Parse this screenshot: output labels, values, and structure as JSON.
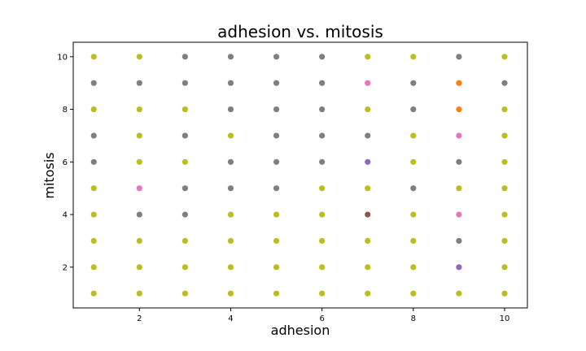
{
  "chart_data": {
    "type": "scatter",
    "title": "adhesion vs. mitosis",
    "xlabel": "adhesion",
    "ylabel": "mitosis",
    "xlim": [
      0.55,
      10.5
    ],
    "ylim": [
      0.45,
      10.55
    ],
    "xticks": [
      2,
      4,
      6,
      8,
      10
    ],
    "yticks": [
      2,
      4,
      6,
      8,
      10
    ],
    "grid": false,
    "colors": {
      "olive": "#bcbd22",
      "gray": "#7f7f7f",
      "pink": "#e377c2",
      "orange": "#ff7f0e",
      "purple": "#9467bd",
      "brown": "#8c564b"
    },
    "points": [
      {
        "x": 1,
        "y": 10,
        "color": "olive"
      },
      {
        "x": 1,
        "y": 9,
        "color": "gray"
      },
      {
        "x": 1,
        "y": 8,
        "color": "olive"
      },
      {
        "x": 1,
        "y": 7,
        "color": "gray"
      },
      {
        "x": 1,
        "y": 6,
        "color": "gray"
      },
      {
        "x": 1,
        "y": 5,
        "color": "olive"
      },
      {
        "x": 1,
        "y": 4,
        "color": "olive"
      },
      {
        "x": 1,
        "y": 3,
        "color": "olive"
      },
      {
        "x": 1,
        "y": 2,
        "color": "olive"
      },
      {
        "x": 1,
        "y": 1,
        "color": "olive"
      },
      {
        "x": 2,
        "y": 10,
        "color": "olive"
      },
      {
        "x": 2,
        "y": 9,
        "color": "gray"
      },
      {
        "x": 2,
        "y": 8,
        "color": "olive"
      },
      {
        "x": 2,
        "y": 7,
        "color": "olive"
      },
      {
        "x": 2,
        "y": 6,
        "color": "olive"
      },
      {
        "x": 2,
        "y": 5,
        "color": "pink"
      },
      {
        "x": 2,
        "y": 4,
        "color": "gray"
      },
      {
        "x": 2,
        "y": 3,
        "color": "olive"
      },
      {
        "x": 2,
        "y": 2,
        "color": "olive"
      },
      {
        "x": 2,
        "y": 1,
        "color": "olive"
      },
      {
        "x": 3,
        "y": 10,
        "color": "gray"
      },
      {
        "x": 3,
        "y": 9,
        "color": "gray"
      },
      {
        "x": 3,
        "y": 8,
        "color": "olive"
      },
      {
        "x": 3,
        "y": 7,
        "color": "gray"
      },
      {
        "x": 3,
        "y": 6,
        "color": "olive"
      },
      {
        "x": 3,
        "y": 5,
        "color": "gray"
      },
      {
        "x": 3,
        "y": 4,
        "color": "gray"
      },
      {
        "x": 3,
        "y": 3,
        "color": "olive"
      },
      {
        "x": 3,
        "y": 2,
        "color": "olive"
      },
      {
        "x": 3,
        "y": 1,
        "color": "olive"
      },
      {
        "x": 4,
        "y": 10,
        "color": "gray"
      },
      {
        "x": 4,
        "y": 9,
        "color": "gray"
      },
      {
        "x": 4,
        "y": 8,
        "color": "gray"
      },
      {
        "x": 4,
        "y": 7,
        "color": "olive"
      },
      {
        "x": 4,
        "y": 6,
        "color": "gray"
      },
      {
        "x": 4,
        "y": 5,
        "color": "gray"
      },
      {
        "x": 4,
        "y": 4,
        "color": "olive"
      },
      {
        "x": 4,
        "y": 3,
        "color": "olive"
      },
      {
        "x": 4,
        "y": 2,
        "color": "olive"
      },
      {
        "x": 4,
        "y": 1,
        "color": "olive"
      },
      {
        "x": 5,
        "y": 10,
        "color": "gray"
      },
      {
        "x": 5,
        "y": 9,
        "color": "gray"
      },
      {
        "x": 5,
        "y": 8,
        "color": "gray"
      },
      {
        "x": 5,
        "y": 7,
        "color": "gray"
      },
      {
        "x": 5,
        "y": 6,
        "color": "gray"
      },
      {
        "x": 5,
        "y": 5,
        "color": "gray"
      },
      {
        "x": 5,
        "y": 4,
        "color": "olive"
      },
      {
        "x": 5,
        "y": 3,
        "color": "olive"
      },
      {
        "x": 5,
        "y": 2,
        "color": "olive"
      },
      {
        "x": 5,
        "y": 1,
        "color": "olive"
      },
      {
        "x": 6,
        "y": 10,
        "color": "gray"
      },
      {
        "x": 6,
        "y": 9,
        "color": "gray"
      },
      {
        "x": 6,
        "y": 8,
        "color": "gray"
      },
      {
        "x": 6,
        "y": 7,
        "color": "gray"
      },
      {
        "x": 6,
        "y": 6,
        "color": "gray"
      },
      {
        "x": 6,
        "y": 5,
        "color": "olive"
      },
      {
        "x": 6,
        "y": 4,
        "color": "olive"
      },
      {
        "x": 6,
        "y": 3,
        "color": "olive"
      },
      {
        "x": 6,
        "y": 2,
        "color": "olive"
      },
      {
        "x": 6,
        "y": 1,
        "color": "olive"
      },
      {
        "x": 7,
        "y": 10,
        "color": "olive"
      },
      {
        "x": 7,
        "y": 9,
        "color": "pink"
      },
      {
        "x": 7,
        "y": 8,
        "color": "olive"
      },
      {
        "x": 7,
        "y": 7,
        "color": "gray"
      },
      {
        "x": 7,
        "y": 6,
        "color": "purple"
      },
      {
        "x": 7,
        "y": 5,
        "color": "olive"
      },
      {
        "x": 7,
        "y": 4,
        "color": "brown"
      },
      {
        "x": 7,
        "y": 3,
        "color": "olive"
      },
      {
        "x": 7,
        "y": 2,
        "color": "olive"
      },
      {
        "x": 7,
        "y": 1,
        "color": "olive"
      },
      {
        "x": 8,
        "y": 10,
        "color": "olive"
      },
      {
        "x": 8,
        "y": 9,
        "color": "gray"
      },
      {
        "x": 8,
        "y": 8,
        "color": "gray"
      },
      {
        "x": 8,
        "y": 7,
        "color": "olive"
      },
      {
        "x": 8,
        "y": 6,
        "color": "olive"
      },
      {
        "x": 8,
        "y": 5,
        "color": "gray"
      },
      {
        "x": 8,
        "y": 4,
        "color": "olive"
      },
      {
        "x": 8,
        "y": 3,
        "color": "olive"
      },
      {
        "x": 8,
        "y": 2,
        "color": "olive"
      },
      {
        "x": 8,
        "y": 1,
        "color": "olive"
      },
      {
        "x": 9,
        "y": 10,
        "color": "gray"
      },
      {
        "x": 9,
        "y": 9,
        "color": "orange"
      },
      {
        "x": 9,
        "y": 8,
        "color": "orange"
      },
      {
        "x": 9,
        "y": 7,
        "color": "pink"
      },
      {
        "x": 9,
        "y": 6,
        "color": "gray"
      },
      {
        "x": 9,
        "y": 5,
        "color": "olive"
      },
      {
        "x": 9,
        "y": 4,
        "color": "pink"
      },
      {
        "x": 9,
        "y": 3,
        "color": "gray"
      },
      {
        "x": 9,
        "y": 2,
        "color": "purple"
      },
      {
        "x": 9,
        "y": 1,
        "color": "olive"
      },
      {
        "x": 10,
        "y": 10,
        "color": "olive"
      },
      {
        "x": 10,
        "y": 9,
        "color": "gray"
      },
      {
        "x": 10,
        "y": 8,
        "color": "olive"
      },
      {
        "x": 10,
        "y": 7,
        "color": "olive"
      },
      {
        "x": 10,
        "y": 6,
        "color": "olive"
      },
      {
        "x": 10,
        "y": 5,
        "color": "olive"
      },
      {
        "x": 10,
        "y": 4,
        "color": "olive"
      },
      {
        "x": 10,
        "y": 3,
        "color": "olive"
      },
      {
        "x": 10,
        "y": 2,
        "color": "olive"
      },
      {
        "x": 10,
        "y": 1,
        "color": "olive"
      }
    ]
  }
}
